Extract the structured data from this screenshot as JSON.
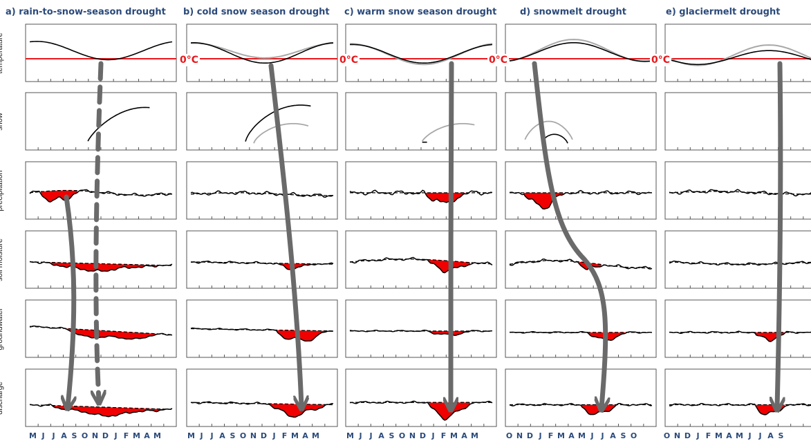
{
  "columns": [
    {
      "title": "a) rain-to-snow-season drought"
    },
    {
      "title": "b) cold snow season drought"
    },
    {
      "title": "c) warm snow season drought"
    },
    {
      "title": "d) snowmelt drought"
    },
    {
      "title": "e) glaciermelt drought"
    }
  ],
  "rows": [
    "temperature",
    "snow",
    "precipitation",
    "soil moisture",
    "groundwater",
    "discharge"
  ],
  "freezing_label": "0°C",
  "month_axes": [
    {
      "months": [
        "M",
        "J",
        "J",
        "A",
        "S",
        "O",
        "N",
        "D",
        "J",
        "F",
        "M",
        "A",
        "M"
      ]
    },
    {
      "months": [
        "M",
        "J",
        "J",
        "A",
        "S",
        "O",
        "N",
        "D",
        "J",
        "F",
        "M",
        "A",
        "M"
      ]
    },
    {
      "months": [
        "M",
        "J",
        "J",
        "A",
        "S",
        "O",
        "N",
        "D",
        "J",
        "F",
        "M",
        "A",
        "M"
      ]
    },
    {
      "months": [
        "O",
        "N",
        "D",
        "J",
        "F",
        "M",
        "A",
        "M",
        "J",
        "J",
        "A",
        "S",
        "O"
      ]
    },
    {
      "months": [
        "O",
        "N",
        "D",
        "J",
        "F",
        "M",
        "A",
        "M",
        "J",
        "J",
        "A",
        "S"
      ]
    }
  ],
  "colors": {
    "title": "#2b4a7a",
    "freezing_line": "#e8171b",
    "deficit_fill": "#f00000",
    "arrow": "#6a6a6a",
    "line": "#000000",
    "reference_line": "#a8a8a8"
  }
}
